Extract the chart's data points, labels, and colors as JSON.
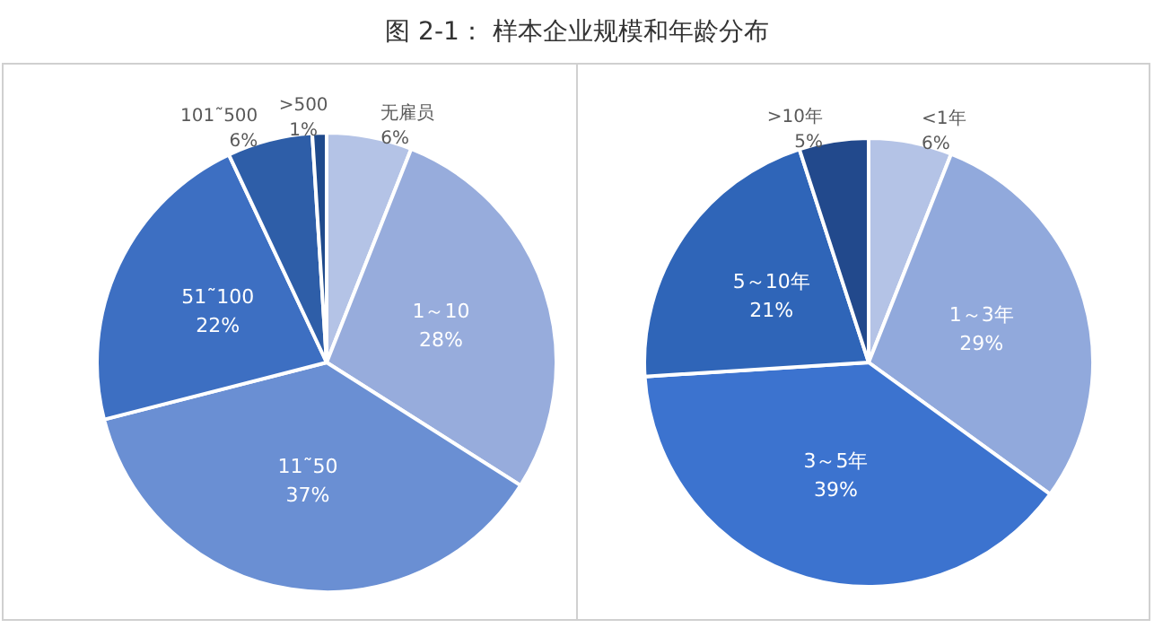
{
  "chart_data": [
    {
      "type": "pie",
      "title": "图 2-1： 样本企业规模和年龄分布",
      "categories": [
        "无雇员",
        "1～10",
        "11˜50",
        "51˜100",
        "101˜500",
        ">500"
      ],
      "values": [
        6,
        28,
        37,
        22,
        6,
        1
      ],
      "colors": [
        "#b4c3e6",
        "#97acdc",
        "#6a8fd3",
        "#3d6fc2",
        "#2e5ea8",
        "#1f4a8c"
      ],
      "value_labels": [
        "6%",
        "28%",
        "37%",
        "22%",
        "6%",
        "1%"
      ],
      "legend": false
    },
    {
      "type": "pie",
      "categories": [
        "<1年",
        "1～3年",
        "3～5年",
        "5～10年",
        ">10年"
      ],
      "values": [
        6,
        29,
        39,
        21,
        5
      ],
      "colors": [
        "#b4c3e6",
        "#91a9dc",
        "#3c73cf",
        "#2f65b8",
        "#22498c"
      ],
      "value_labels": [
        "6%",
        "29%",
        "39%",
        "21%",
        "5%"
      ],
      "legend": false
    }
  ]
}
